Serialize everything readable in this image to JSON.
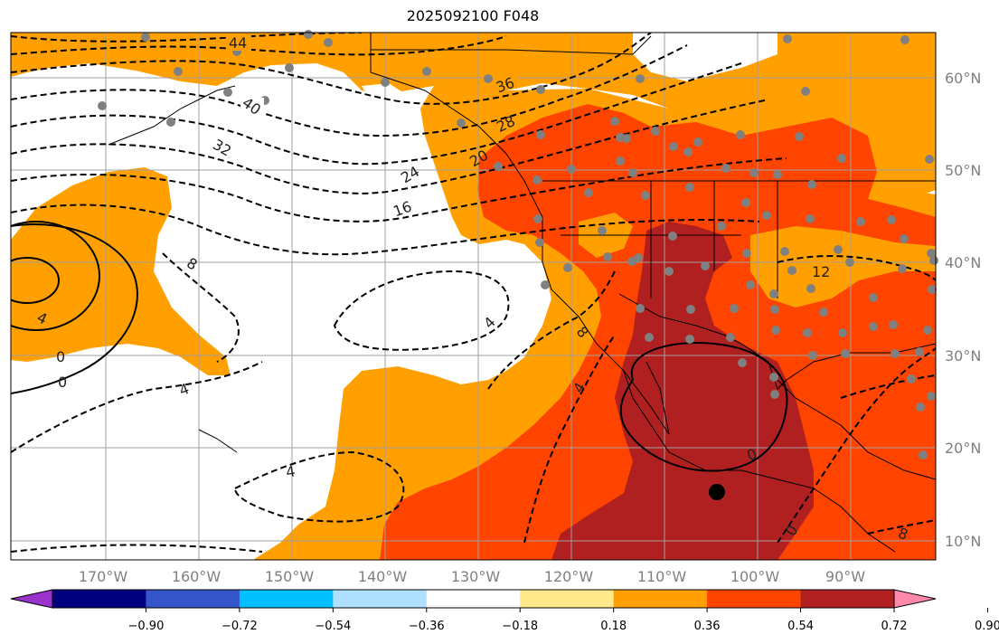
{
  "title": "2025092100 F048",
  "longitude_labels": [
    "170°W",
    "160°W",
    "150°W",
    "140°W",
    "130°W",
    "120°W",
    "110°W",
    "100°W",
    "90°W"
  ],
  "latitude_labels": [
    "60°N",
    "50°N",
    "40°N",
    "30°N",
    "20°N",
    "10°N"
  ],
  "contour_labels": [
    "44",
    "40",
    "36",
    "32",
    "28",
    "24",
    "20",
    "16",
    "12",
    "8",
    "8",
    "8",
    "4",
    "4",
    "4",
    "4",
    "4",
    "0",
    "0"
  ],
  "colorbar": {
    "ticks": [
      "−0.90",
      "−0.72",
      "−0.54",
      "−0.36",
      "−0.18",
      "0.18",
      "0.36",
      "0.54",
      "0.72",
      "0.90"
    ],
    "colors": [
      "#9a33cc",
      "#00007f",
      "#3455c8",
      "#00bfff",
      "#afe0ff",
      "#ffffff",
      "#ffe98a",
      "#ffa000",
      "#ff4400",
      "#b02020",
      "#ff88aa"
    ]
  },
  "colors": {
    "orange": "#ffa000",
    "red_orange": "#ff4400",
    "dark_red": "#b02020",
    "station": "#808080"
  }
}
